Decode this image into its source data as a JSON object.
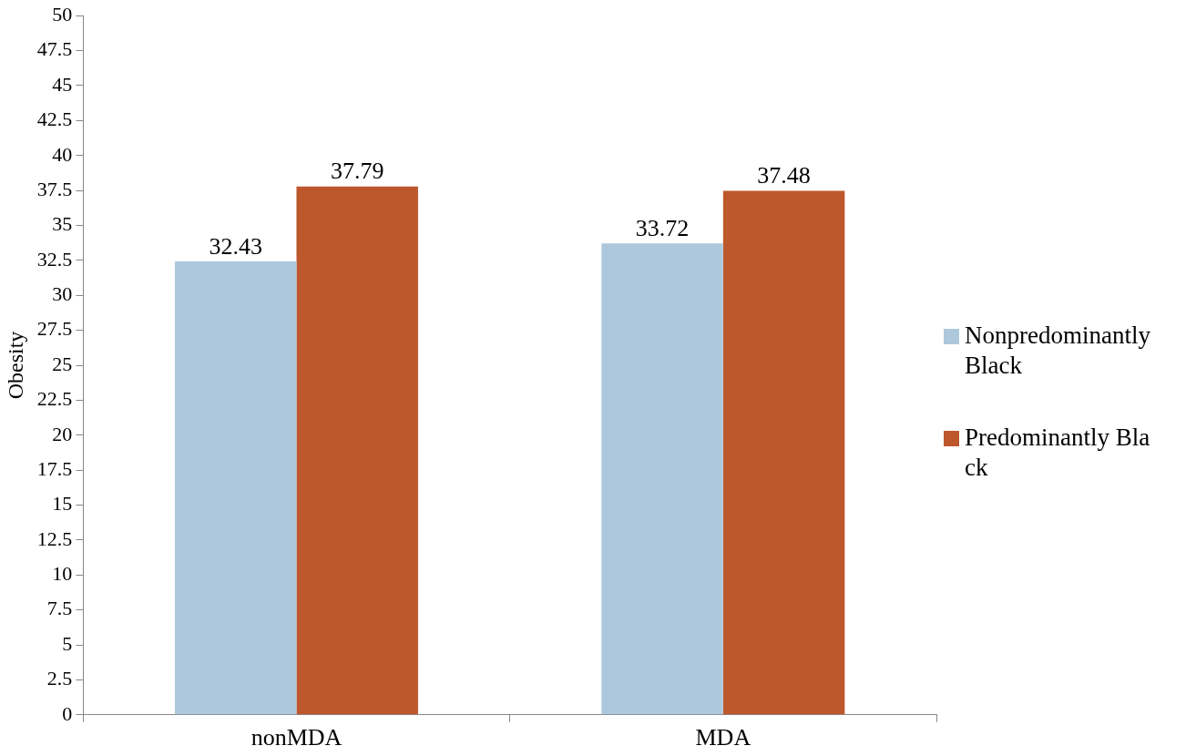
{
  "chart_data": {
    "type": "bar",
    "ylabel": "Obesity",
    "categories": [
      "nonMDA",
      "MDA"
    ],
    "series": [
      {
        "name": "Nonpredominantly Black",
        "color": "#adc8dd",
        "values": [
          32.43,
          33.72
        ]
      },
      {
        "name": "Predominantly Black",
        "color": "#bd582c",
        "values": [
          37.79,
          37.48
        ]
      }
    ],
    "ylim": [
      0,
      50
    ],
    "yticks": [
      0,
      2.5,
      5,
      7.5,
      10,
      12.5,
      15,
      17.5,
      20,
      22.5,
      25,
      27.5,
      30,
      32.5,
      35,
      37.5,
      40,
      42.5,
      45,
      47.5,
      50
    ],
    "grid": false,
    "legend": "right",
    "data_labels": true
  }
}
